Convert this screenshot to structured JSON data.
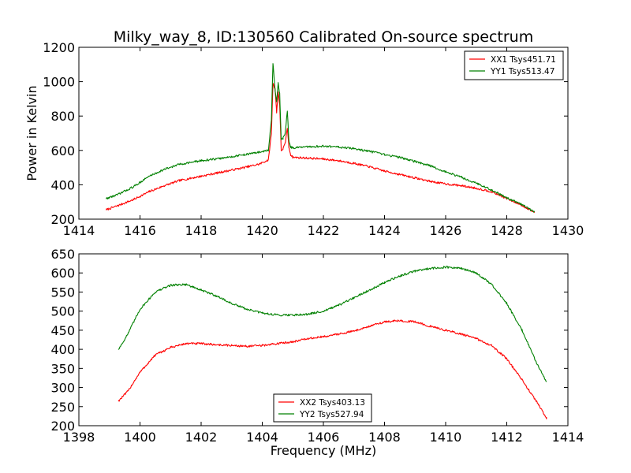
{
  "figure": {
    "title": "Milky_way_8, ID:130560 Calibrated On-source spectrum"
  },
  "chart_data": [
    {
      "type": "line",
      "title": "Milky_way_8, ID:130560 Calibrated On-source spectrum",
      "xlabel": "",
      "ylabel": "Power in Kelvin",
      "xlim": [
        1414,
        1430
      ],
      "ylim": [
        200,
        1200
      ],
      "xticks": [
        1414,
        1416,
        1418,
        1420,
        1422,
        1424,
        1426,
        1428,
        1430
      ],
      "yticks": [
        200,
        400,
        600,
        800,
        1000,
        1200
      ],
      "grid": false,
      "legend_position": "top-right",
      "series": [
        {
          "name": "XX1 Tsys451.71",
          "color": "#ff0000",
          "points": [
            [
              1414.9,
              255
            ],
            [
              1415.3,
              280
            ],
            [
              1415.8,
              315
            ],
            [
              1416.3,
              360
            ],
            [
              1416.8,
              395
            ],
            [
              1417.3,
              425
            ],
            [
              1418.0,
              450
            ],
            [
              1418.7,
              475
            ],
            [
              1419.4,
              500
            ],
            [
              1419.9,
              520
            ],
            [
              1420.2,
              545
            ],
            [
              1420.3,
              700
            ],
            [
              1420.35,
              990
            ],
            [
              1420.42,
              960
            ],
            [
              1420.47,
              820
            ],
            [
              1420.52,
              940
            ],
            [
              1420.57,
              870
            ],
            [
              1420.62,
              600
            ],
            [
              1420.68,
              610
            ],
            [
              1420.75,
              640
            ],
            [
              1420.82,
              730
            ],
            [
              1420.87,
              620
            ],
            [
              1420.93,
              575
            ],
            [
              1421.0,
              560
            ],
            [
              1421.5,
              555
            ],
            [
              1422.0,
              550
            ],
            [
              1422.5,
              540
            ],
            [
              1423.0,
              525
            ],
            [
              1423.5,
              505
            ],
            [
              1424.0,
              480
            ],
            [
              1424.5,
              460
            ],
            [
              1425.0,
              440
            ],
            [
              1425.5,
              420
            ],
            [
              1426.0,
              405
            ],
            [
              1426.5,
              395
            ],
            [
              1427.0,
              380
            ],
            [
              1427.5,
              360
            ],
            [
              1428.0,
              320
            ],
            [
              1428.5,
              280
            ],
            [
              1428.9,
              240
            ]
          ]
        },
        {
          "name": "YY1 Tsys513.47",
          "color": "#008000",
          "points": [
            [
              1414.9,
              320
            ],
            [
              1415.3,
              345
            ],
            [
              1415.8,
              390
            ],
            [
              1416.3,
              450
            ],
            [
              1416.8,
              490
            ],
            [
              1417.3,
              520
            ],
            [
              1418.0,
              540
            ],
            [
              1418.7,
              555
            ],
            [
              1419.4,
              575
            ],
            [
              1419.9,
              590
            ],
            [
              1420.2,
              600
            ],
            [
              1420.3,
              780
            ],
            [
              1420.35,
              1105
            ],
            [
              1420.42,
              950
            ],
            [
              1420.47,
              880
            ],
            [
              1420.52,
              990
            ],
            [
              1420.57,
              930
            ],
            [
              1420.62,
              660
            ],
            [
              1420.68,
              670
            ],
            [
              1420.75,
              700
            ],
            [
              1420.82,
              830
            ],
            [
              1420.87,
              660
            ],
            [
              1420.93,
              620
            ],
            [
              1421.0,
              615
            ],
            [
              1421.5,
              620
            ],
            [
              1422.0,
              625
            ],
            [
              1422.5,
              620
            ],
            [
              1423.0,
              610
            ],
            [
              1423.5,
              595
            ],
            [
              1424.0,
              575
            ],
            [
              1424.5,
              560
            ],
            [
              1425.0,
              535
            ],
            [
              1425.5,
              510
            ],
            [
              1426.0,
              475
            ],
            [
              1426.5,
              445
            ],
            [
              1427.0,
              410
            ],
            [
              1427.5,
              370
            ],
            [
              1428.0,
              325
            ],
            [
              1428.5,
              285
            ],
            [
              1428.9,
              240
            ]
          ]
        }
      ]
    },
    {
      "type": "line",
      "title": "",
      "xlabel": "Frequency (MHz)",
      "ylabel": "",
      "xlim": [
        1398,
        1414
      ],
      "ylim": [
        200,
        650
      ],
      "xticks": [
        1398,
        1400,
        1402,
        1404,
        1406,
        1408,
        1410,
        1412,
        1414
      ],
      "yticks": [
        200,
        250,
        300,
        350,
        400,
        450,
        500,
        550,
        600,
        650
      ],
      "grid": false,
      "legend_position": "bottom-center",
      "series": [
        {
          "name": "XX2 Tsys403.13",
          "color": "#ff0000",
          "points": [
            [
              1399.3,
              265
            ],
            [
              1399.6,
              290
            ],
            [
              1400.0,
              340
            ],
            [
              1400.5,
              385
            ],
            [
              1401.0,
              405
            ],
            [
              1401.5,
              415
            ],
            [
              1402.0,
              415
            ],
            [
              1402.5,
              412
            ],
            [
              1403.0,
              410
            ],
            [
              1403.5,
              408
            ],
            [
              1404.0,
              410
            ],
            [
              1404.5,
              415
            ],
            [
              1405.0,
              420
            ],
            [
              1405.5,
              428
            ],
            [
              1406.0,
              433
            ],
            [
              1406.5,
              440
            ],
            [
              1407.0,
              448
            ],
            [
              1407.5,
              460
            ],
            [
              1408.0,
              472
            ],
            [
              1408.5,
              475
            ],
            [
              1409.0,
              472
            ],
            [
              1409.5,
              460
            ],
            [
              1410.0,
              450
            ],
            [
              1410.5,
              440
            ],
            [
              1411.0,
              428
            ],
            [
              1411.5,
              410
            ],
            [
              1412.0,
              375
            ],
            [
              1412.5,
              320
            ],
            [
              1413.0,
              260
            ],
            [
              1413.3,
              220
            ]
          ]
        },
        {
          "name": "YY2 Tsys527.94",
          "color": "#008000",
          "points": [
            [
              1399.3,
              400
            ],
            [
              1399.6,
              440
            ],
            [
              1400.0,
              505
            ],
            [
              1400.5,
              550
            ],
            [
              1401.0,
              568
            ],
            [
              1401.5,
              570
            ],
            [
              1402.0,
              555
            ],
            [
              1402.5,
              540
            ],
            [
              1403.0,
              520
            ],
            [
              1403.5,
              505
            ],
            [
              1404.0,
              495
            ],
            [
              1404.5,
              490
            ],
            [
              1405.0,
              490
            ],
            [
              1405.5,
              492
            ],
            [
              1406.0,
              500
            ],
            [
              1406.5,
              515
            ],
            [
              1407.0,
              535
            ],
            [
              1407.5,
              555
            ],
            [
              1408.0,
              575
            ],
            [
              1408.5,
              592
            ],
            [
              1409.0,
              605
            ],
            [
              1409.5,
              612
            ],
            [
              1410.0,
              615
            ],
            [
              1410.5,
              612
            ],
            [
              1411.0,
              600
            ],
            [
              1411.5,
              570
            ],
            [
              1412.0,
              520
            ],
            [
              1412.5,
              450
            ],
            [
              1413.0,
              360
            ],
            [
              1413.3,
              315
            ]
          ]
        }
      ]
    }
  ]
}
